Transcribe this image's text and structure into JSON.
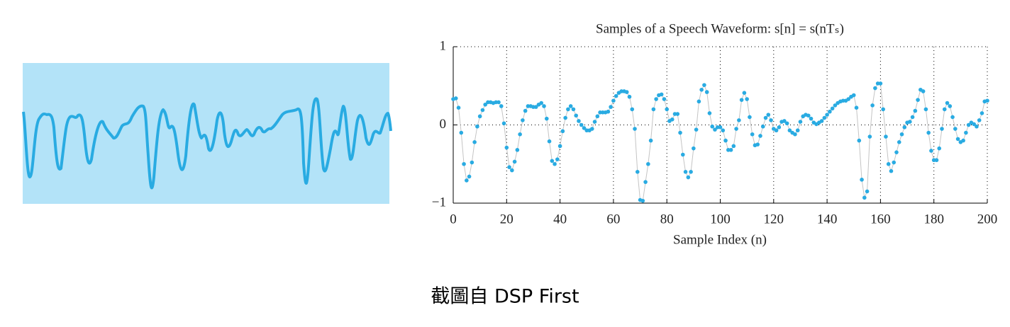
{
  "chart_data": {
    "type": "line",
    "title": "Samples of a Speech Waveform: s[n] = s(nTₛ)",
    "xlabel": "Sample Index (n)",
    "x": [
      0,
      1,
      2,
      3,
      4,
      5,
      6,
      7,
      8,
      9,
      10,
      11,
      12,
      13,
      14,
      15,
      16,
      17,
      18,
      19,
      20,
      21,
      22,
      23,
      24,
      25,
      26,
      27,
      28,
      29,
      30,
      31,
      32,
      33,
      34,
      35,
      36,
      37,
      38,
      39,
      40,
      41,
      42,
      43,
      44,
      45,
      46,
      47,
      48,
      49,
      50,
      51,
      52,
      53,
      54,
      55,
      56,
      57,
      58,
      59,
      60,
      61,
      62,
      63,
      64,
      65,
      66,
      67,
      68,
      69,
      70,
      71,
      72,
      73,
      74,
      75,
      76,
      77,
      78,
      79,
      80,
      81,
      82,
      83,
      84,
      85,
      86,
      87,
      88,
      89,
      90,
      91,
      92,
      93,
      94,
      95,
      96,
      97,
      98,
      99,
      100,
      101,
      102,
      103,
      104,
      105,
      106,
      107,
      108,
      109,
      110,
      111,
      112,
      113,
      114,
      115,
      116,
      117,
      118,
      119,
      120,
      121,
      122,
      123,
      124,
      125,
      126,
      127,
      128,
      129,
      130,
      131,
      132,
      133,
      134,
      135,
      136,
      137,
      138,
      139,
      140,
      141,
      142,
      143,
      144,
      145,
      146,
      147,
      148,
      149,
      150,
      151,
      152,
      153,
      154,
      155,
      156,
      157,
      158,
      159,
      160,
      161,
      162,
      163,
      164,
      165,
      166,
      167,
      168,
      169,
      170,
      171,
      172,
      173,
      174,
      175,
      176,
      177,
      178,
      179,
      180,
      181,
      182,
      183,
      184,
      185,
      186,
      187,
      188,
      189,
      190,
      191,
      192,
      193,
      194,
      195,
      196,
      197,
      198,
      199,
      200
    ],
    "values": [
      0.33,
      0.34,
      0.22,
      -0.1,
      -0.5,
      -0.71,
      -0.66,
      -0.48,
      -0.22,
      -0.02,
      0.11,
      0.19,
      0.26,
      0.29,
      0.29,
      0.28,
      0.29,
      0.29,
      0.24,
      0.02,
      -0.29,
      -0.54,
      -0.58,
      -0.47,
      -0.32,
      -0.12,
      0.06,
      0.18,
      0.24,
      0.24,
      0.23,
      0.23,
      0.26,
      0.28,
      0.24,
      0.08,
      -0.21,
      -0.46,
      -0.5,
      -0.44,
      -0.27,
      -0.08,
      0.09,
      0.2,
      0.24,
      0.2,
      0.12,
      0.05,
      0.0,
      -0.04,
      -0.07,
      -0.07,
      -0.05,
      0.04,
      0.11,
      0.16,
      0.16,
      0.16,
      0.17,
      0.23,
      0.31,
      0.37,
      0.41,
      0.43,
      0.43,
      0.42,
      0.36,
      0.2,
      -0.05,
      -0.6,
      -0.96,
      -0.97,
      -0.73,
      -0.5,
      -0.2,
      0.2,
      0.33,
      0.38,
      0.39,
      0.33,
      0.2,
      0.05,
      0.07,
      0.14,
      0.14,
      -0.1,
      -0.38,
      -0.6,
      -0.67,
      -0.6,
      -0.3,
      -0.06,
      0.3,
      0.45,
      0.51,
      0.42,
      0.15,
      -0.02,
      -0.06,
      -0.03,
      -0.03,
      -0.07,
      -0.2,
      -0.32,
      -0.32,
      -0.27,
      -0.05,
      0.06,
      0.32,
      0.41,
      0.33,
      0.1,
      -0.12,
      -0.26,
      -0.25,
      -0.14,
      -0.02,
      0.09,
      0.13,
      0.06,
      -0.05,
      -0.07,
      -0.03,
      0.04,
      0.05,
      0.02,
      -0.07,
      -0.1,
      -0.12,
      -0.07,
      0.04,
      0.11,
      0.13,
      0.12,
      0.08,
      0.03,
      0.01,
      0.03,
      0.05,
      0.09,
      0.13,
      0.17,
      0.21,
      0.25,
      0.28,
      0.3,
      0.31,
      0.31,
      0.33,
      0.36,
      0.38,
      0.22,
      -0.2,
      -0.7,
      -0.93,
      -0.85,
      -0.15,
      0.25,
      0.47,
      0.53,
      0.53,
      0.2,
      -0.15,
      -0.5,
      -0.59,
      -0.48,
      -0.35,
      -0.22,
      -0.12,
      -0.03,
      0.03,
      0.04,
      0.1,
      0.18,
      0.32,
      0.45,
      0.43,
      0.2,
      -0.1,
      -0.33,
      -0.45,
      -0.45,
      -0.3,
      -0.05,
      0.2,
      0.28,
      0.24,
      0.1,
      -0.05,
      -0.18,
      -0.22,
      -0.2,
      -0.1,
      0.0,
      0.03,
      0.01,
      -0.02,
      0.06,
      0.15,
      0.3,
      0.31
    ],
    "color": "#29abe2",
    "line_color": "#c4c4c4",
    "xlim": [
      0,
      200
    ],
    "xticks": [
      0,
      20,
      40,
      60,
      80,
      100,
      120,
      140,
      160,
      180,
      200
    ],
    "ylim": [
      -1,
      1
    ],
    "yticks": [
      {
        "value": -1,
        "label": "−1"
      },
      0,
      1
    ],
    "grid": true
  },
  "caption": "截圖自 DSP First"
}
